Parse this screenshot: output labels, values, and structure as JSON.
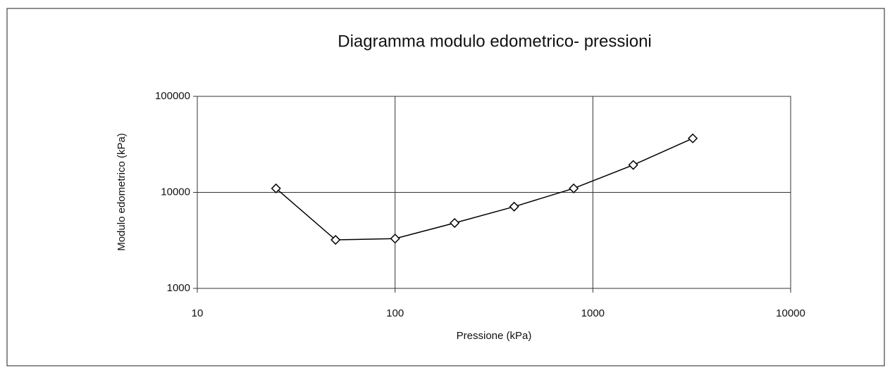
{
  "chart_data": {
    "type": "line",
    "title": "Diagramma modulo edometrico- pressioni",
    "x_label": "Pressione (kPa)",
    "y_label": "Modulo edometrico (kPa)",
    "x": [
      25,
      50,
      100,
      200,
      400,
      800,
      1600,
      3200
    ],
    "series": [
      {
        "name": "Modulo edometrico",
        "color": "#000000",
        "values": [
          11000,
          3200,
          3300,
          4800,
          7100,
          11000,
          19300,
          36500
        ]
      }
    ],
    "xlim": [
      10,
      10000
    ],
    "xticks": [
      10,
      100,
      1000,
      10000
    ],
    "ylim": [
      1000,
      100000
    ],
    "yticks": [
      1000,
      10000,
      100000
    ],
    "xlog": true,
    "ylog": true,
    "grid": true
  }
}
